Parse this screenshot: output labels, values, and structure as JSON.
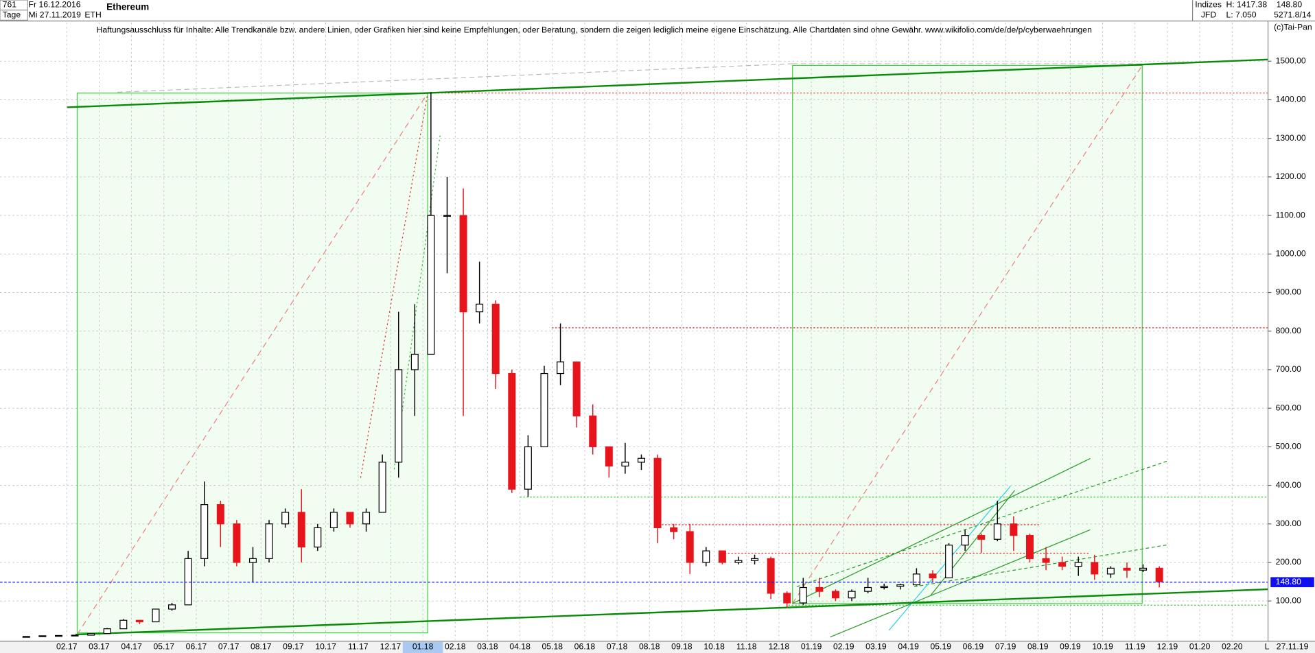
{
  "toolbar": {
    "count": "761",
    "start_date": "Fr 16.12.2016",
    "period": "Tage",
    "end_date": "Mi 27.11.2019",
    "symbol": "ETH",
    "group": "Indizes",
    "source": "JFD",
    "high": "H: 1417.38",
    "low": "L: 7.050",
    "last": "148.80",
    "info": "5271.8/14",
    "copyright": "(c)Tai-Pan",
    "axis_end_marker": "L",
    "axis_end_date": "27.11.19"
  },
  "chart_data": {
    "type": "candlestick",
    "title": "Ethereum",
    "subtitle": "Haftungsausschluss für Inhalte: Alle Trendkanäle bzw. andere Linien, oder Grafiken hier sind keine Empfehlungen, oder Beratung, sondern die zeigen lediglich meine eigene Einschätzung. Alle Chartdaten sind ohne Gewähr.  www.wikifolio.com/de/de/p/cyberwaehrungen",
    "categories": [
      null,
      null,
      null,
      "02.17",
      null,
      "03.17",
      null,
      "04.17",
      null,
      "05.17",
      null,
      "06.17",
      null,
      "07.17",
      null,
      "08.17",
      null,
      "09.17",
      null,
      "10.17",
      null,
      "11.17",
      null,
      "12.17",
      null,
      "01.18",
      null,
      "02.18",
      null,
      "03.18",
      null,
      "04.18",
      null,
      "05.18",
      null,
      "06.18",
      null,
      "07.18",
      null,
      "08.18",
      null,
      "09.18",
      null,
      "10.18",
      null,
      "11.18",
      null,
      "12.18",
      null,
      "01.19",
      null,
      "02.19",
      null,
      "03.19",
      null,
      "04.19",
      null,
      "05.19",
      null,
      "06.19",
      null,
      "07.19",
      null,
      "08.19",
      null,
      "09.19",
      null,
      "10.19",
      null,
      "11.19",
      null,
      "12.19",
      null,
      "01.20",
      null,
      "02.20",
      null
    ],
    "open": [
      7.6,
      8,
      9.8,
      10.6,
      11.4,
      15.6,
      28,
      50,
      46,
      79,
      90,
      210,
      350,
      300,
      200,
      210,
      300,
      330,
      240,
      290,
      330,
      300,
      330,
      460,
      700,
      740,
      1100,
      1100,
      850,
      870,
      690,
      390,
      500,
      690,
      720,
      580,
      500,
      450,
      460,
      470,
      290,
      280,
      200,
      230,
      200,
      205,
      210,
      120,
      95,
      135,
      125,
      108,
      125,
      135,
      138,
      142,
      170,
      160,
      245,
      270,
      260,
      300,
      270,
      210,
      200,
      190,
      200,
      170,
      185,
      180,
      185,
      null,
      null,
      null,
      null,
      null,
      null
    ],
    "high": [
      8.3,
      10.5,
      11,
      12,
      16,
      30,
      53,
      51,
      80,
      95,
      230,
      410,
      360,
      310,
      240,
      310,
      340,
      390,
      300,
      340,
      330,
      340,
      480,
      850,
      870,
      1420,
      1200,
      1170,
      980,
      880,
      700,
      530,
      710,
      820,
      720,
      610,
      500,
      510,
      480,
      480,
      300,
      300,
      240,
      230,
      215,
      220,
      215,
      125,
      160,
      160,
      130,
      130,
      160,
      145,
      145,
      185,
      180,
      250,
      285,
      275,
      360,
      320,
      275,
      240,
      215,
      215,
      220,
      190,
      200,
      195,
      190,
      null,
      null,
      null,
      null,
      null,
      null
    ],
    "low": [
      7.0,
      8,
      9.5,
      10.5,
      11.3,
      15,
      28,
      40,
      46,
      75,
      90,
      190,
      240,
      190,
      150,
      200,
      290,
      200,
      230,
      280,
      290,
      280,
      330,
      420,
      580,
      740,
      950,
      580,
      820,
      650,
      380,
      370,
      500,
      660,
      550,
      480,
      420,
      430,
      440,
      250,
      260,
      170,
      190,
      195,
      195,
      195,
      105,
      84,
      90,
      110,
      100,
      100,
      120,
      130,
      130,
      140,
      150,
      160,
      230,
      225,
      255,
      230,
      200,
      180,
      180,
      165,
      155,
      160,
      160,
      175,
      135,
      null,
      null,
      null,
      null,
      null,
      null
    ],
    "close": [
      8.0,
      9.8,
      10.6,
      11.4,
      15.6,
      28,
      50,
      46,
      79,
      90,
      210,
      350,
      300,
      200,
      210,
      300,
      330,
      240,
      290,
      330,
      300,
      330,
      460,
      700,
      740,
      1100,
      1100,
      850,
      870,
      690,
      390,
      500,
      690,
      720,
      580,
      500,
      450,
      460,
      470,
      290,
      280,
      200,
      230,
      200,
      205,
      210,
      120,
      95,
      135,
      125,
      108,
      125,
      135,
      138,
      142,
      170,
      160,
      245,
      270,
      260,
      300,
      270,
      210,
      200,
      190,
      200,
      170,
      185,
      180,
      185,
      150,
      null,
      null,
      null,
      null,
      null,
      null
    ],
    "up_color": "#000000",
    "down_color": "#e8141c",
    "ylim": [
      0,
      1600
    ],
    "yticks": [
      {
        "value": 100,
        "label": "100.00"
      },
      {
        "value": 200,
        "label": "200.00"
      },
      {
        "value": 300,
        "label": "300.00"
      },
      {
        "value": 400,
        "label": "400.00"
      },
      {
        "value": 500,
        "label": "500.00"
      },
      {
        "value": 600,
        "label": "600.00"
      },
      {
        "value": 700,
        "label": "700.00"
      },
      {
        "value": 800,
        "label": "800.00"
      },
      {
        "value": 900,
        "label": "900.00"
      },
      {
        "value": 1000,
        "label": "1000.00"
      },
      {
        "value": 1100,
        "label": "1100.00"
      },
      {
        "value": 1200,
        "label": "1200.00"
      },
      {
        "value": 1300,
        "label": "1300.00"
      },
      {
        "value": 1400,
        "label": "1400.00"
      },
      {
        "value": 1500,
        "label": "1500.00"
      }
    ],
    "grid": true,
    "y_axis_side": "right",
    "last_price": {
      "value": 148.8,
      "label": "148.80"
    },
    "last_price_color": "#1010ee"
  }
}
